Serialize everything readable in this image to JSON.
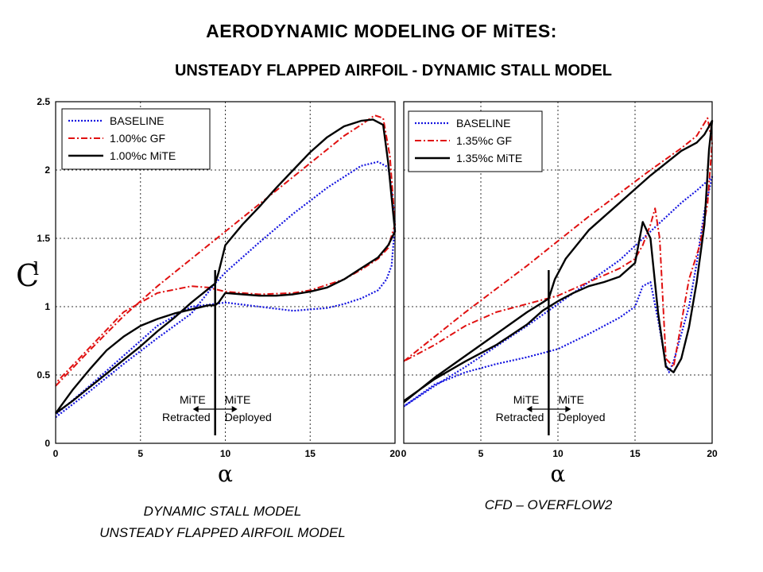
{
  "title": "AERODYNAMIC MODELING OF MiTES:",
  "subtitle": "UNSTEADY FLAPPED AIRFOIL - DYNAMIC STALL MODEL",
  "captions": {
    "left_line1": "DYNAMIC STALL MODEL",
    "left_line2": "UNSTEADY FLAPPED AIRFOIL MODEL",
    "right": "CFD – OVERFLOW2"
  },
  "colors": {
    "baseline": "#1515e0",
    "gf": "#e01010",
    "mite": "#000000"
  },
  "chart_data": [
    {
      "type": "line",
      "xlabel": "α",
      "ylabel": "C",
      "ylabel_sub": "l",
      "xlim": [
        0,
        20
      ],
      "ylim": [
        0,
        2.5
      ],
      "xticks": [
        0,
        5,
        10,
        15,
        20
      ],
      "yticks": [
        0,
        0.5,
        1,
        1.5,
        2,
        2.5
      ],
      "grid": true,
      "legend_position": "top-left",
      "vertical_marker": 9.4,
      "annotations": [
        [
          "MiTE",
          "Retracted"
        ],
        [
          "MiTE",
          "Deployed"
        ]
      ],
      "series": [
        {
          "name": "BASELINE",
          "style": "dotted",
          "color": "#1515e0",
          "x": [
            0,
            2,
            4,
            6,
            8,
            9.4,
            10,
            12,
            14,
            16,
            17,
            18,
            19,
            19.6,
            19.8,
            20,
            19.8,
            19.5,
            19,
            18,
            17,
            16,
            14,
            12,
            10,
            9.4,
            8,
            6,
            4,
            2,
            0
          ],
          "y": [
            0.19,
            0.38,
            0.58,
            0.77,
            0.95,
            1.17,
            1.25,
            1.47,
            1.68,
            1.87,
            1.95,
            2.03,
            2.06,
            2.02,
            1.85,
            1.6,
            1.3,
            1.2,
            1.12,
            1.06,
            1.02,
            0.99,
            0.97,
            1.0,
            1.03,
            1.02,
            1.0,
            0.86,
            0.64,
            0.42,
            0.21
          ]
        },
        {
          "name": "1.00%c GF",
          "style": "dash-dot",
          "color": "#e01010",
          "x": [
            0,
            2,
            4,
            6,
            8,
            10,
            12,
            14,
            16,
            17,
            18,
            18.8,
            19.3,
            19.7,
            20,
            19.8,
            19.6,
            19,
            18,
            17,
            16,
            15,
            14,
            12,
            10,
            9,
            8,
            6,
            4,
            2,
            0
          ],
          "y": [
            0.42,
            0.68,
            0.93,
            1.15,
            1.35,
            1.55,
            1.75,
            1.95,
            2.15,
            2.25,
            2.33,
            2.4,
            2.38,
            2.1,
            1.6,
            1.52,
            1.43,
            1.35,
            1.27,
            1.2,
            1.16,
            1.12,
            1.1,
            1.09,
            1.11,
            1.14,
            1.15,
            1.1,
            0.96,
            0.7,
            0.44
          ]
        },
        {
          "name": "1.00%c MiTE",
          "style": "solid",
          "color": "#000000",
          "x": [
            0,
            1,
            2,
            3,
            4,
            5,
            6,
            7,
            8,
            9.2,
            9.4,
            9.6,
            10,
            11,
            12,
            13,
            14,
            15,
            16,
            17,
            18,
            18.7,
            19.3,
            19.6,
            19.8,
            20,
            19.8,
            19.6,
            19,
            18,
            17,
            16,
            15,
            14,
            13,
            12,
            11,
            10,
            9.6,
            9.4,
            9,
            8,
            7,
            6,
            5,
            4,
            3,
            2,
            1,
            0
          ],
          "y": [
            0.22,
            0.31,
            0.41,
            0.51,
            0.61,
            0.71,
            0.82,
            0.92,
            1.03,
            1.15,
            1.17,
            1.25,
            1.45,
            1.6,
            1.73,
            1.87,
            2.0,
            2.13,
            2.24,
            2.32,
            2.36,
            2.37,
            2.33,
            2.05,
            1.8,
            1.55,
            1.5,
            1.45,
            1.36,
            1.28,
            1.2,
            1.14,
            1.11,
            1.09,
            1.08,
            1.08,
            1.09,
            1.1,
            1.03,
            1.01,
            1.01,
            0.98,
            0.95,
            0.91,
            0.86,
            0.78,
            0.68,
            0.54,
            0.39,
            0.22
          ]
        }
      ]
    },
    {
      "type": "line",
      "xlabel": "α",
      "xlim": [
        0,
        20
      ],
      "ylim": [
        0,
        2.5
      ],
      "xticks": [
        0,
        5,
        10,
        15,
        20
      ],
      "grid": true,
      "legend_position": "top-left",
      "vertical_marker": 9.4,
      "annotations": [
        [
          "MiTE",
          "Retracted"
        ],
        [
          "MiTE",
          "Deployed"
        ]
      ],
      "series": [
        {
          "name": "BASELINE",
          "style": "dotted",
          "color": "#1515e0",
          "x": [
            0,
            2,
            4,
            6,
            8,
            10,
            12,
            14,
            16,
            18,
            19,
            20,
            19.5,
            19,
            18.5,
            18,
            17.5,
            17.2,
            17,
            16.5,
            16,
            15.5,
            15,
            14,
            12,
            10,
            8,
            6,
            4,
            2,
            0
          ],
          "y": [
            0.27,
            0.42,
            0.56,
            0.71,
            0.86,
            1.02,
            1.18,
            1.34,
            1.55,
            1.76,
            1.85,
            1.95,
            1.7,
            1.32,
            1.0,
            0.8,
            0.6,
            0.52,
            0.58,
            0.9,
            1.18,
            1.15,
            1.0,
            0.92,
            0.8,
            0.69,
            0.63,
            0.58,
            0.52,
            0.43,
            0.27
          ]
        },
        {
          "name": "1.35%c GF",
          "style": "dash-dot",
          "color": "#e01010",
          "x": [
            0,
            2,
            4,
            6,
            8,
            10,
            12,
            14,
            16,
            18,
            19,
            19.7,
            20,
            19.7,
            19.2,
            18.5,
            18,
            17.5,
            17,
            16.6,
            16.3,
            16,
            15.5,
            15,
            14,
            12,
            10,
            8,
            6,
            4,
            2,
            0
          ],
          "y": [
            0.6,
            0.78,
            0.96,
            1.13,
            1.3,
            1.48,
            1.66,
            1.83,
            2.0,
            2.16,
            2.25,
            2.38,
            2.2,
            1.75,
            1.45,
            1.2,
            0.88,
            0.56,
            0.62,
            1.5,
            1.72,
            1.6,
            1.45,
            1.35,
            1.28,
            1.18,
            1.08,
            1.02,
            0.96,
            0.86,
            0.72,
            0.6
          ]
        },
        {
          "name": "1.35%c MiTE",
          "style": "solid",
          "color": "#000000",
          "x": [
            0,
            2,
            4,
            6,
            8,
            9,
            9.4,
            9.8,
            10.5,
            12,
            14,
            16,
            18,
            19,
            19.5,
            20,
            19.8,
            19.5,
            19,
            18.5,
            18,
            17.5,
            17,
            16.5,
            16,
            15.5,
            15,
            14,
            13,
            12,
            11,
            10,
            9,
            8,
            6,
            4,
            2,
            0
          ],
          "y": [
            0.3,
            0.48,
            0.64,
            0.8,
            0.96,
            1.03,
            1.06,
            1.2,
            1.35,
            1.56,
            1.76,
            1.96,
            2.14,
            2.2,
            2.26,
            2.36,
            2.15,
            1.6,
            1.18,
            0.85,
            0.62,
            0.52,
            0.56,
            0.95,
            1.5,
            1.62,
            1.32,
            1.22,
            1.18,
            1.15,
            1.1,
            1.04,
            0.97,
            0.87,
            0.72,
            0.6,
            0.47,
            0.31
          ]
        }
      ]
    }
  ]
}
